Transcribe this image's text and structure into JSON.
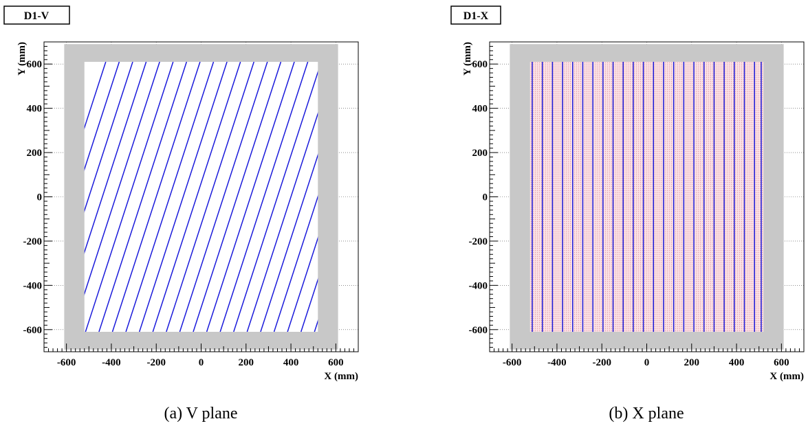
{
  "chart_data": [
    {
      "type": "scatter",
      "title": "D1-V",
      "caption": "(a) V plane",
      "xlabel": "X (mm)",
      "ylabel": "Y (mm)",
      "xlim": [
        -700,
        700
      ],
      "ylim": [
        -700,
        700
      ],
      "xticks": [
        -600,
        -400,
        -200,
        0,
        200,
        400,
        600
      ],
      "yticks": [
        -600,
        -400,
        -200,
        0,
        200,
        400,
        600
      ],
      "frame_outer": [
        -610,
        610,
        -690,
        690
      ],
      "active_area": [
        -520,
        520,
        -610,
        610
      ],
      "wires": {
        "orientation": "slanted",
        "slope_dx_per_dy": 0.32,
        "x_at_y0": [
          -620,
          -560,
          -500,
          -440,
          -380,
          -320,
          -260,
          -200,
          -140,
          -80,
          -20,
          40,
          100,
          160,
          220,
          280,
          340,
          400,
          460,
          520,
          580,
          640,
          700
        ]
      },
      "wire_color": "#1a1adb",
      "shading": false,
      "grid": true
    },
    {
      "type": "scatter",
      "title": "D1-X",
      "caption": "(b) X plane",
      "xlabel": "X (mm)",
      "ylabel": "Y (mm)",
      "xlim": [
        -700,
        700
      ],
      "ylim": [
        -700,
        700
      ],
      "xticks": [
        -600,
        -400,
        -200,
        0,
        200,
        400,
        600
      ],
      "yticks": [
        -600,
        -400,
        -200,
        0,
        200,
        400,
        600
      ],
      "frame_outer": [
        -610,
        610,
        -690,
        690
      ],
      "active_area": [
        -520,
        520,
        -610,
        610
      ],
      "wires": {
        "orientation": "vertical",
        "x_positions": [
          -510,
          -465,
          -420,
          -375,
          -330,
          -285,
          -240,
          -195,
          -150,
          -105,
          -60,
          -15,
          30,
          75,
          120,
          165,
          210,
          255,
          300,
          345,
          390,
          435,
          480,
          510
        ]
      },
      "wire_color": "#1a1adb",
      "shading": true,
      "shading_color": "#f3c9cf",
      "grid": true
    }
  ],
  "frame_color": "#c8c8c8"
}
